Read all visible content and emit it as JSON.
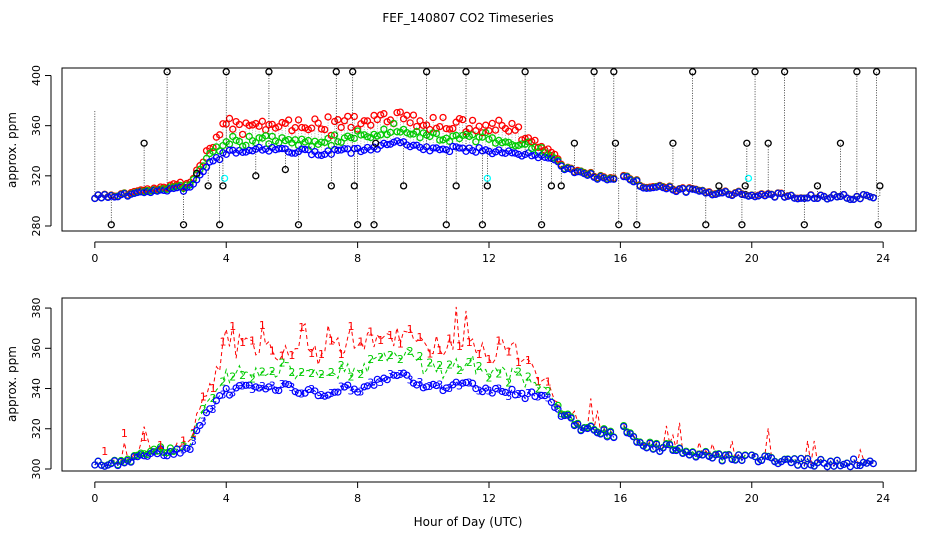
{
  "title": "FEF_140807  CO2 Timeseries",
  "chart_data": [
    {
      "type": "scatter",
      "panel": "top",
      "ylabel": "approx. ppm",
      "xlim": [
        -1,
        25
      ],
      "ylim": [
        276,
        406
      ],
      "x_ticks": [
        0,
        4,
        8,
        12,
        16,
        20,
        24
      ],
      "y_ticks": [
        280,
        320,
        360,
        400
      ],
      "colors": [
        "#000000",
        "#ff0000",
        "#00cc00",
        "#0000ff",
        "#00ffff"
      ],
      "curve_knots": {
        "x": [
          0,
          0.5,
          1,
          1.5,
          2,
          2.5,
          2.9,
          3.1,
          3.5,
          4,
          4.5,
          5,
          5.5,
          6,
          6.5,
          7,
          7.5,
          8,
          8.5,
          9,
          9.5,
          10,
          10.5,
          11,
          11.5,
          12,
          12.5,
          13,
          13.5,
          13.9,
          14.2,
          14.6,
          15,
          15.5,
          15.85,
          16,
          16.3,
          16.6,
          17,
          17.5,
          18,
          19,
          20,
          21,
          22,
          23,
          23.8
        ],
        "y": [
          303,
          303,
          304,
          308,
          308,
          309,
          310,
          318,
          330,
          338,
          340,
          342,
          341,
          340,
          339,
          338,
          340,
          340,
          342,
          346,
          346,
          342,
          340,
          342,
          341,
          340,
          338,
          337,
          336,
          334,
          328,
          322,
          320,
          318,
          315,
          320,
          318,
          312,
          311,
          310,
          308,
          306,
          305,
          304,
          303,
          303,
          304
        ]
      },
      "spikes": {
        "x": [
          0.5,
          1.5,
          2.2,
          2.7,
          3.1,
          3.45,
          3.8,
          3.9,
          4.0,
          4.9,
          5.3,
          5.8,
          6.2,
          7.2,
          7.35,
          7.85,
          7.9,
          8.0,
          8.5,
          8.55,
          9.4,
          10.1,
          10.7,
          11.0,
          11.3,
          11.8,
          11.95,
          13.1,
          13.6,
          13.9,
          14.2,
          14.6,
          15.2,
          15.8,
          15.85,
          15.95,
          16.5,
          17.6,
          18.2,
          18.6,
          19.0,
          19.7,
          19.8,
          19.85,
          20.5,
          20.1,
          21.0,
          21.6,
          22.0,
          22.7,
          23.2,
          23.8,
          23.85,
          23.9
        ],
        "y": [
          281,
          346,
          403,
          281,
          322,
          312,
          281,
          312,
          403,
          320,
          403,
          325,
          281,
          312,
          403,
          403,
          312,
          281,
          281,
          346,
          312,
          403,
          281,
          312,
          403,
          281,
          312,
          403,
          281,
          312,
          312,
          346,
          403,
          403,
          346,
          281,
          281,
          346,
          403,
          281,
          312,
          281,
          312,
          346,
          346,
          403,
          403,
          281,
          312,
          346,
          403,
          403,
          281,
          312
        ]
      }
    },
    {
      "type": "line",
      "panel": "bottom",
      "xlabel": "Hour of Day (UTC)",
      "ylabel": "approx. ppm",
      "xlim": [
        -1,
        25
      ],
      "ylim": [
        299,
        385
      ],
      "x_ticks": [
        0,
        4,
        8,
        12,
        16,
        20,
        24
      ],
      "y_ticks": [
        300,
        320,
        340,
        360,
        380
      ],
      "series": [
        {
          "label": "1",
          "color": "#ff0000"
        },
        {
          "label": "2",
          "color": "#00cc00"
        },
        {
          "label": "3",
          "color": "#0000ff"
        }
      ],
      "curve_knots": {
        "x": [
          0,
          0.5,
          1,
          1.5,
          2,
          2.5,
          2.9,
          3.1,
          3.5,
          4,
          4.5,
          5,
          5.5,
          6,
          6.5,
          7,
          7.5,
          8,
          8.5,
          9,
          9.5,
          10,
          10.5,
          11,
          11.5,
          12,
          12.5,
          13,
          13.5,
          13.9,
          14.2,
          14.6,
          15,
          15.5,
          15.85,
          16,
          16.3,
          16.6,
          17,
          17.5,
          18,
          19,
          20,
          21,
          22,
          23,
          23.8
        ],
        "y": [
          303,
          303,
          304,
          308,
          308,
          309,
          310,
          318,
          330,
          338,
          340,
          342,
          341,
          340,
          339,
          338,
          340,
          340,
          342,
          346,
          346,
          342,
          340,
          342,
          341,
          340,
          338,
          337,
          336,
          334,
          328,
          322,
          320,
          318,
          315,
          320,
          318,
          312,
          311,
          310,
          308,
          306,
          305,
          304,
          303,
          303,
          304
        ]
      },
      "peak_offsets": {
        "x": [
          0,
          2,
          2.9,
          3.3,
          4,
          6,
          8,
          9,
          10,
          12,
          13,
          13.5,
          14,
          14.3,
          24
        ],
        "red": [
          0,
          2,
          4,
          10,
          20,
          20,
          22,
          20,
          20,
          20,
          18,
          10,
          4,
          1,
          0
        ],
        "green": [
          0,
          1,
          2,
          5,
          8,
          8,
          10,
          12,
          10,
          10,
          8,
          5,
          2,
          0.5,
          0
        ]
      }
    }
  ]
}
